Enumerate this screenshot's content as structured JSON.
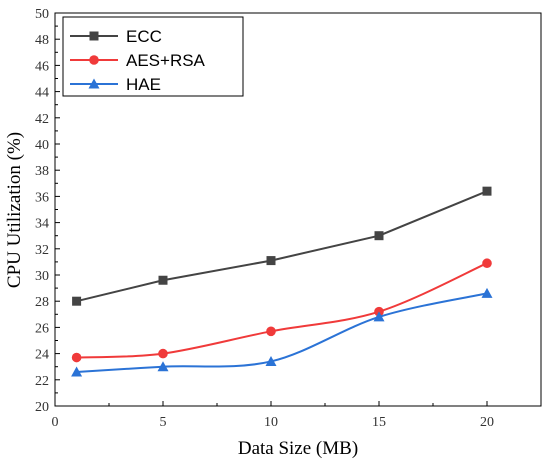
{
  "chart_data": {
    "type": "line",
    "title": "",
    "xlabel": "Data Size (MB)",
    "ylabel": "CPU Utilization (%)",
    "xlim": [
      0,
      22.5
    ],
    "ylim": [
      20,
      50
    ],
    "x_ticks": [
      0,
      5,
      10,
      15,
      20
    ],
    "y_ticks": [
      20,
      22,
      24,
      26,
      28,
      30,
      32,
      34,
      36,
      38,
      40,
      42,
      44,
      46,
      48,
      50
    ],
    "grid": false,
    "legend_position": "top-left",
    "x": [
      1,
      5,
      10,
      15,
      20
    ],
    "series": [
      {
        "name": "ECC",
        "values": [
          28.0,
          29.6,
          31.1,
          33.0,
          36.4
        ],
        "color": "#444444",
        "marker": "square",
        "smooth": false
      },
      {
        "name": "AES+RSA",
        "values": [
          23.7,
          24.0,
          25.7,
          27.2,
          30.9
        ],
        "color": "#f03a3a",
        "marker": "circle",
        "smooth": true
      },
      {
        "name": "HAE",
        "values": [
          22.6,
          23.0,
          23.4,
          26.8,
          28.6
        ],
        "color": "#2b73d6",
        "marker": "triangle",
        "smooth": true
      }
    ]
  }
}
